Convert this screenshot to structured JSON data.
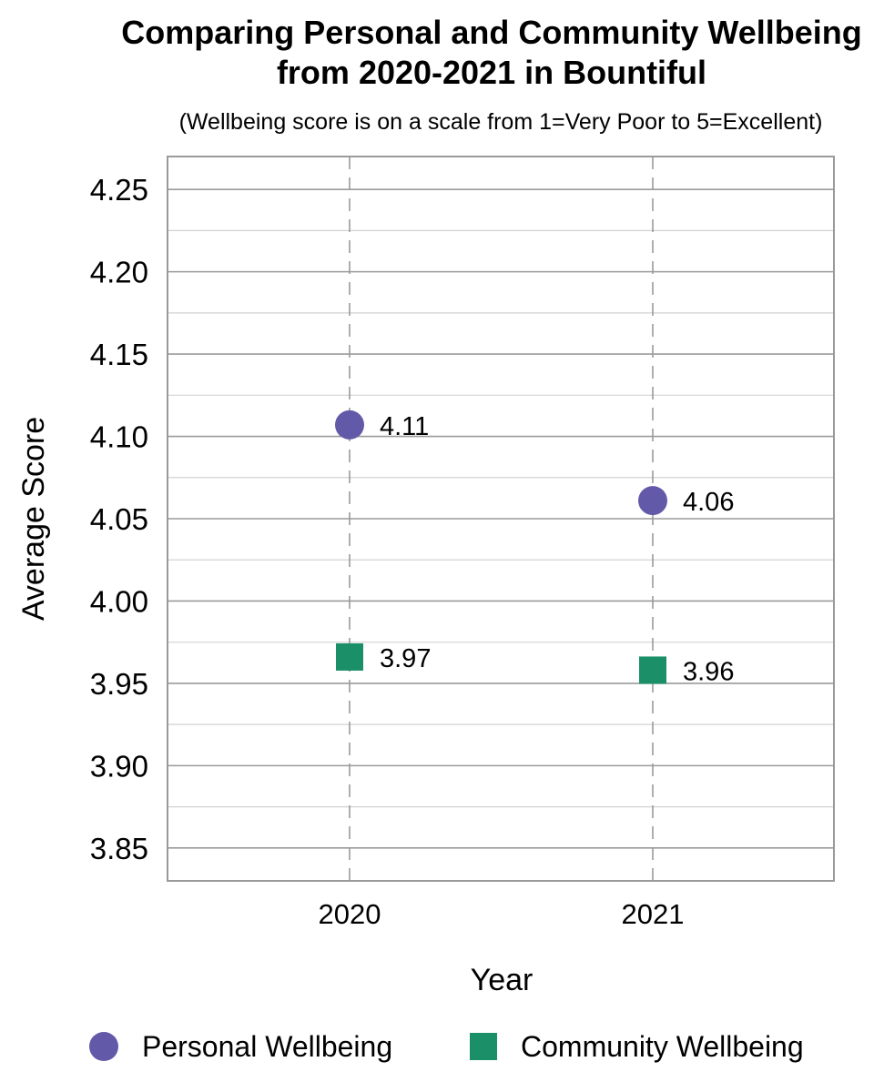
{
  "chart_data": {
    "type": "scatter",
    "title_line1": "Comparing Personal and Community Wellbeing",
    "title_line2": "from 2020-2021 in Bountiful",
    "subtitle": "(Wellbeing score is on a scale from 1=Very Poor to 5=Excellent)",
    "xlabel": "Year",
    "ylabel": "Average Score",
    "categories": [
      "2020",
      "2021"
    ],
    "ylim": [
      3.83,
      4.27
    ],
    "yticks": [
      "3.85",
      "3.90",
      "3.95",
      "4.00",
      "4.05",
      "4.10",
      "4.15",
      "4.20",
      "4.25"
    ],
    "grid": true,
    "legend_position": "bottom",
    "series": [
      {
        "name": "Personal Wellbeing",
        "marker": "circle",
        "color": "#6259a8",
        "values": [
          4.107,
          4.061
        ],
        "labels": [
          "4.11",
          "4.06"
        ]
      },
      {
        "name": "Community Wellbeing",
        "marker": "square",
        "color": "#1b8f68",
        "values": [
          3.966,
          3.958
        ],
        "labels": [
          "3.97",
          "3.96"
        ]
      }
    ]
  }
}
